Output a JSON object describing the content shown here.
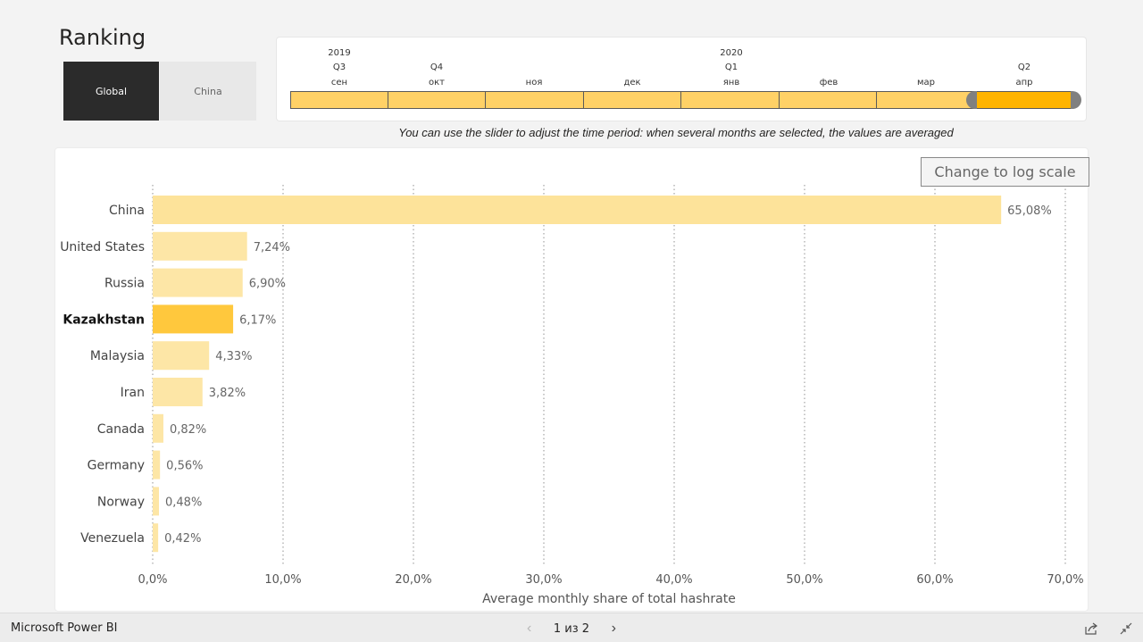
{
  "report": {
    "title": "Ranking"
  },
  "toggles": [
    {
      "label": "Global",
      "active": true
    },
    {
      "label": "China",
      "active": false
    }
  ],
  "timeline": {
    "years": [
      "2019",
      "2020"
    ],
    "quarters": [
      "Q3",
      "Q4",
      "Q1",
      "Q2"
    ],
    "months": [
      "сен",
      "окт",
      "ноя",
      "дек",
      "янв",
      "фев",
      "мар",
      "апр"
    ],
    "selected_month": "апр",
    "colors": {
      "segment": "#ffd166",
      "selected": "#ffb400",
      "handle": "#808080"
    }
  },
  "hint": "You can use the slider to adjust the time period: when several months are selected, the values are averaged",
  "log_button": {
    "label": "Change to log scale"
  },
  "chart_data": {
    "type": "bar",
    "orientation": "horizontal",
    "categories": [
      "China",
      "United States",
      "Russia",
      "Kazakhstan",
      "Malaysia",
      "Iran",
      "Canada",
      "Germany",
      "Norway",
      "Venezuela"
    ],
    "values": [
      65.08,
      7.24,
      6.9,
      6.17,
      4.33,
      3.82,
      0.82,
      0.56,
      0.48,
      0.42
    ],
    "value_labels": [
      "65,08%",
      "7,24%",
      "6,90%",
      "6,17%",
      "4,33%",
      "3,82%",
      "0,82%",
      "0,56%",
      "0,48%",
      "0,42%"
    ],
    "highlighted": "Kazakhstan",
    "xlabel": "Average monthly share of total hashrate",
    "ylabel": "",
    "xlim": [
      0,
      70
    ],
    "x_ticks": [
      0,
      10,
      20,
      30,
      40,
      50,
      60,
      70
    ],
    "x_tick_labels": [
      "0,0%",
      "10,0%",
      "20,0%",
      "30,0%",
      "40,0%",
      "50,0%",
      "60,0%",
      "70,0%"
    ],
    "grid": "vertical dotted",
    "colors": {
      "bar": "#fde6a6",
      "bar_top": "#fde39a",
      "highlight": "#ffc83d"
    }
  },
  "statusbar": {
    "brand": "Microsoft Power BI",
    "page_indicator": "1 из 2",
    "prev_icon": "chevron-left-icon",
    "next_icon": "chevron-right-icon",
    "share_icon": "share-icon",
    "collapse_icon": "collapse-icon"
  }
}
